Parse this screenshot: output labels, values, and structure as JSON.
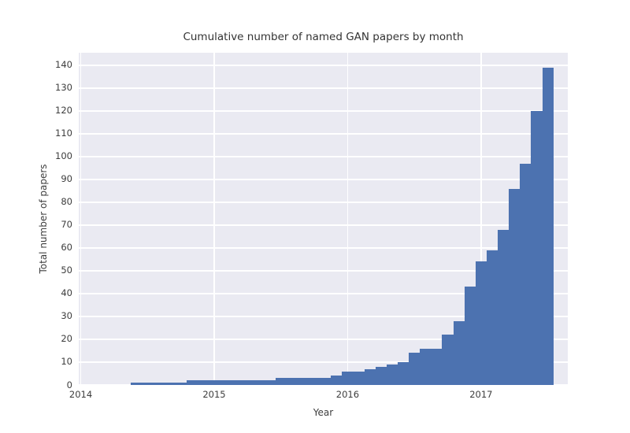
{
  "chart_data": {
    "type": "bar",
    "title": "Cumulative number of named GAN papers by month",
    "xlabel": "Year",
    "ylabel": "Total number of papers",
    "months": [
      "2014-06",
      "2014-07",
      "2014-08",
      "2014-09",
      "2014-10",
      "2014-11",
      "2014-12",
      "2015-01",
      "2015-02",
      "2015-03",
      "2015-04",
      "2015-05",
      "2015-06",
      "2015-07",
      "2015-08",
      "2015-09",
      "2015-10",
      "2015-11",
      "2015-12",
      "2016-01",
      "2016-02",
      "2016-03",
      "2016-04",
      "2016-05",
      "2016-06",
      "2016-07",
      "2016-08",
      "2016-09",
      "2016-10",
      "2016-11",
      "2016-12",
      "2017-01",
      "2017-02",
      "2017-03",
      "2017-04",
      "2017-05",
      "2017-06",
      "2017-07"
    ],
    "values": [
      1,
      1,
      1,
      1,
      1,
      2,
      2,
      2,
      2,
      2,
      2,
      2,
      2,
      3,
      3,
      3,
      3,
      3,
      4,
      6,
      6,
      7,
      8,
      9,
      10,
      14,
      16,
      16,
      22,
      28,
      43,
      54,
      59,
      68,
      86,
      97,
      120,
      139
    ],
    "xticks": [
      2014,
      2015,
      2016,
      2017
    ],
    "yticks": [
      0,
      10,
      20,
      30,
      40,
      50,
      60,
      70,
      80,
      90,
      100,
      110,
      120,
      130,
      140
    ],
    "xlim": [
      2013.985,
      2017.65
    ],
    "ylim": [
      0,
      145.5
    ],
    "grid": true,
    "legend": false,
    "bar_color": "#4C72B0",
    "plot_bg_color": "#EAEAF2",
    "grid_color": "#FFFFFF"
  }
}
